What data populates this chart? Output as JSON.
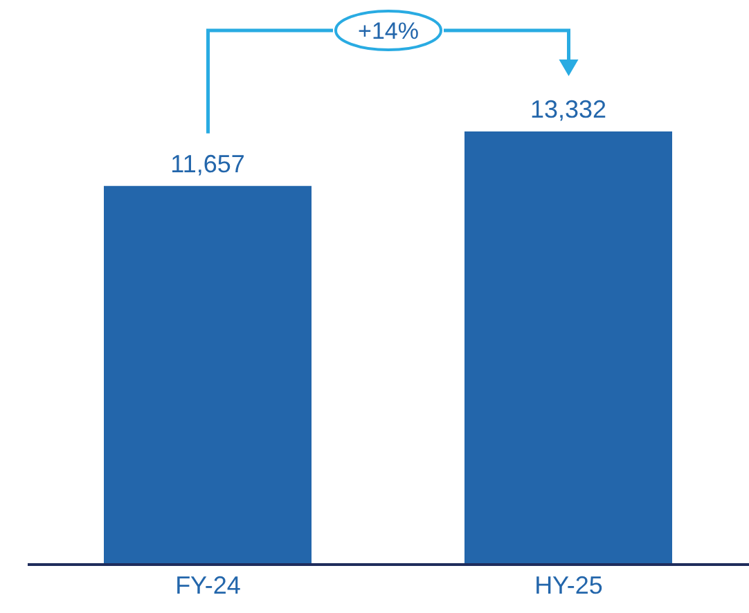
{
  "chart_data": {
    "type": "bar",
    "categories": [
      "FY-24",
      "HY-25"
    ],
    "values": [
      11657,
      13332
    ],
    "color": "#2366ab",
    "value_labels": [
      "11,657",
      "13,332"
    ],
    "tick_labels": "x",
    "annotations": [
      "+14%"
    ]
  }
}
